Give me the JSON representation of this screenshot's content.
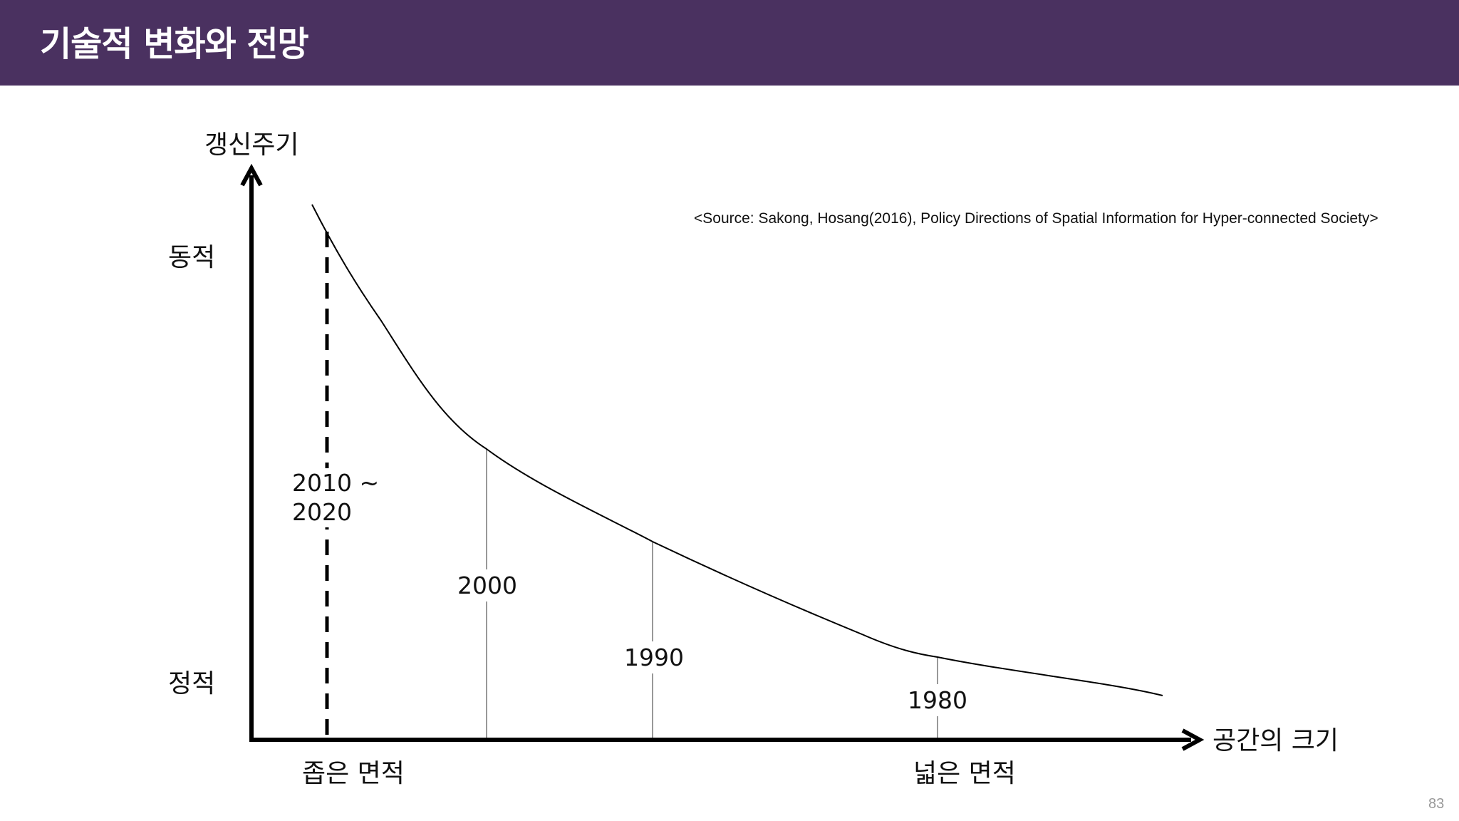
{
  "header": {
    "title": "기술적 변화와 전망"
  },
  "diagram": {
    "y_axis_title": "갱신주기",
    "y_high_label": "동적",
    "y_low_label": "정적",
    "x_axis_title": "공간의 크기",
    "x_low_label": "좁은 면적",
    "x_high_label": "넓은 면적",
    "source": "<Source: Sakong, Hosang(2016), Policy Directions of Spatial Information for Hyper-connected Society>",
    "eras": [
      {
        "label_line1": "2010 ~",
        "label_line2": "2020"
      },
      {
        "label": "2000"
      },
      {
        "label": "1990"
      },
      {
        "label": "1980"
      }
    ]
  },
  "page_number": "83"
}
